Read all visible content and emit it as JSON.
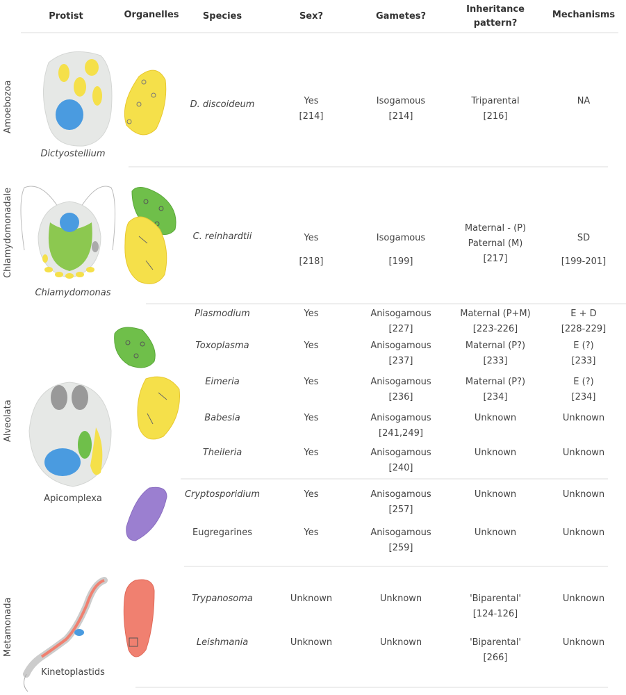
{
  "headers": {
    "protist": "Protist",
    "organelles": "Organelles",
    "species": "Species",
    "sex": "Sex?",
    "gametes": "Gametes?",
    "inheritance_line1": "Inheritance",
    "inheritance_line2": "pattern?",
    "mechanisms": "Mechanisms"
  },
  "groups": [
    {
      "label": "Amoebozoa",
      "protist": "Dictyostellium",
      "protist_italic": true
    },
    {
      "label": "Chlamydomonadale",
      "protist": "Chlamydomonas",
      "protist_italic": true
    },
    {
      "label": "Alveolata",
      "protist": "Apicomplexa",
      "protist_italic": false
    },
    {
      "label": "Metamonada",
      "protist": "Kinetoplastids",
      "protist_italic": false
    }
  ],
  "rows": [
    {
      "species": "D. discoideum",
      "italic": true,
      "sex": [
        "Yes",
        "[214]"
      ],
      "gametes": [
        "Isogamous",
        "[214]"
      ],
      "inheritance": [
        "Triparental",
        "[216]"
      ],
      "mechanisms": [
        "NA"
      ]
    },
    {
      "species": "C. reinhardtii",
      "italic": true,
      "sex": [
        "Yes",
        "[218]"
      ],
      "gametes": [
        "Isogamous",
        "[199]"
      ],
      "inheritance": [
        "Maternal - (P)",
        "Paternal (M)",
        "[217]"
      ],
      "mechanisms": [
        "SD",
        "[199-201]"
      ]
    },
    {
      "species": "Plasmodium",
      "italic": true,
      "sex": [
        "Yes"
      ],
      "gametes": [
        "Anisogamous",
        "[227]"
      ],
      "inheritance": [
        "Maternal (P+M)",
        "[223-226]"
      ],
      "mechanisms": [
        "E + D",
        "[228-229]"
      ]
    },
    {
      "species": "Toxoplasma",
      "italic": true,
      "sex": [
        "Yes"
      ],
      "gametes": [
        "Anisogamous",
        "[237]"
      ],
      "inheritance": [
        "Maternal (P?)",
        "[233]"
      ],
      "mechanisms": [
        "E (?)",
        "[233]"
      ]
    },
    {
      "species": "Eimeria",
      "italic": true,
      "sex": [
        "Yes"
      ],
      "gametes": [
        "Anisogamous",
        "[236]"
      ],
      "inheritance": [
        "Maternal (P?)",
        "[234]"
      ],
      "mechanisms": [
        "E (?)",
        "[234]"
      ]
    },
    {
      "species": "Babesia",
      "italic": true,
      "sex": [
        "Yes"
      ],
      "gametes": [
        "Anisogamous",
        "[241,249]"
      ],
      "inheritance": [
        "Unknown"
      ],
      "mechanisms": [
        "Unknown"
      ]
    },
    {
      "species": "Theileria",
      "italic": true,
      "sex": [
        "Yes"
      ],
      "gametes": [
        "Anisogamous",
        "[240]"
      ],
      "inheritance": [
        "Unknown"
      ],
      "mechanisms": [
        "Unknown"
      ]
    },
    {
      "species": "Cryptosporidium",
      "italic": true,
      "sex": [
        "Yes"
      ],
      "gametes": [
        "Anisogamous",
        "[257]"
      ],
      "inheritance": [
        "Unknown"
      ],
      "mechanisms": [
        "Unknown"
      ]
    },
    {
      "species": "Eugregarines",
      "italic": false,
      "sex": [
        "Yes"
      ],
      "gametes": [
        "Anisogamous",
        "[259]"
      ],
      "inheritance": [
        "Unknown"
      ],
      "mechanisms": [
        "Unknown"
      ]
    },
    {
      "species": "Trypanosoma",
      "italic": true,
      "sex": [
        "Unknown"
      ],
      "gametes": [
        "Unknown"
      ],
      "inheritance": [
        "'Biparental'",
        "[124-126]"
      ],
      "mechanisms": [
        "Unknown"
      ]
    },
    {
      "species": "Leishmania",
      "italic": true,
      "sex": [
        "Unknown"
      ],
      "gametes": [
        "Unknown"
      ],
      "inheritance": [
        "'Biparental'",
        "[266]"
      ],
      "mechanisms": [
        "Unknown"
      ]
    }
  ],
  "colors": {
    "mitochondrion": "#f5e04a",
    "plastid": "#6fbf4a",
    "nucleus": "#4a9be0",
    "apicoplast_purple": "#9b7fd0",
    "kinetoplastid_mito": "#f08070",
    "cell_body": "#e4e6e4"
  }
}
